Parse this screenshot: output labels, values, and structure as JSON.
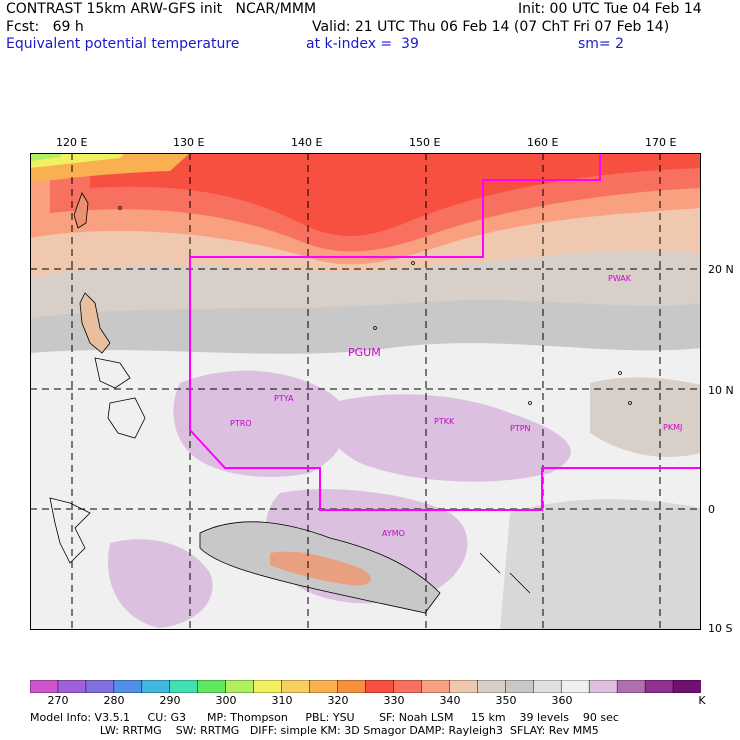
{
  "header": {
    "line1_left": "CONTRAST 15km ARW-GFS init   NCAR/MMM",
    "line1_right": "Init: 00 UTC Tue 04 Feb 14",
    "line2_left": "Fcst:   69 h",
    "line2_right": "Valid: 21 UTC Thu 06 Feb 14 (07 ChT Fri 07 Feb 14)",
    "field": "Equivalent potential temperature",
    "level": "at k-index =  39",
    "smooth": "sm= 2"
  },
  "longitude_labels": [
    "120 E",
    "130 E",
    "140 E",
    "150 E",
    "160 E",
    "170 E"
  ],
  "latitude_labels": [
    "20 N",
    "10 N",
    "0",
    "10 S"
  ],
  "stations": [
    "PGUM",
    "PTYA",
    "PTRO",
    "PTKK",
    "PTPN",
    "PKMJ",
    "PWAK",
    "AYMO"
  ],
  "colorbar": {
    "labels": [
      "270",
      "280",
      "290",
      "300",
      "310",
      "320",
      "330",
      "340",
      "350",
      "360"
    ],
    "unit": "K",
    "colors": [
      "#cc55cc",
      "#a060d8",
      "#8070e0",
      "#5090e8",
      "#40b8e0",
      "#40e0b0",
      "#60e860",
      "#b0f060",
      "#f0f060",
      "#f8d060",
      "#f8b050",
      "#f89040",
      "#f85040",
      "#f87060",
      "#f8a080",
      "#f0c8b0",
      "#d8d0c8",
      "#c8c8c8",
      "#e0e0e0",
      "#f0f0f0",
      "#e0c0e0",
      "#b070b0",
      "#903090",
      "#701070"
    ]
  },
  "footer": {
    "line1": "Model Info: V3.5.1     CU: G3      MP: Thompson     PBL: YSU       SF: Noah LSM     15 km    39 levels    90 sec",
    "line2": "                    LW: RRTMG    SW: RRTMG   DIFF: simple KM: 3D Smagor DAMP: Rayleigh3  SFLAY: Rev MM5"
  }
}
